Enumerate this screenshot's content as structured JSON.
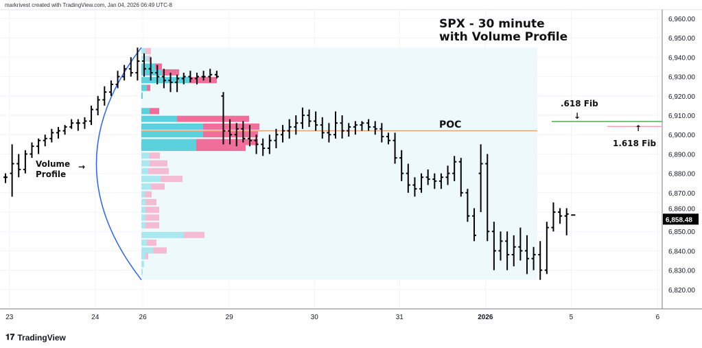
{
  "credit": "markrivest created with TradingView.com, Jan 04, 2026 06:49 UTC-8",
  "brand": "TradingView",
  "chart_data": {
    "type": "ohlc-bar",
    "title": "SPX - 30 minute",
    "subtitle": "with Volume Profile",
    "symbol": "SPX",
    "interval": "30 minute",
    "ylim": [
      6815,
      6965
    ],
    "yticks": [
      6820,
      6830,
      6840,
      6850,
      6860,
      6870,
      6880,
      6890,
      6900,
      6910,
      6920,
      6930,
      6940,
      6950,
      6960
    ],
    "ytick_labels": [
      "6,820.00",
      "6,830.00",
      "6,840.00",
      "6,850.00",
      "6,860.00",
      "6,870.00",
      "6,880.00",
      "6,890.00",
      "6,900.00",
      "6,910.00",
      "6,920.00",
      "6,930.00",
      "6,940.00",
      "6,950.00",
      "6,960.00"
    ],
    "last_price": 6858.48,
    "last_price_label": "6,858.48",
    "xticks": [
      {
        "bar": 0.6,
        "label": "23"
      },
      {
        "bar": 13.6,
        "label": "24"
      },
      {
        "bar": 20.8,
        "label": "26"
      },
      {
        "bar": 33.9,
        "label": "29"
      },
      {
        "bar": 46.8,
        "label": "30"
      },
      {
        "bar": 59.7,
        "label": "31"
      },
      {
        "bar": 72.7,
        "label": "2026"
      },
      {
        "bar": 85.7,
        "label": "5"
      },
      {
        "bar": 98.8,
        "label": "6"
      }
    ],
    "bars": [
      [
        6878,
        6880,
        6875,
        6878
      ],
      [
        6880,
        6895,
        6868,
        6885
      ],
      [
        6885,
        6890,
        6878,
        6882
      ],
      [
        6882,
        6892,
        6880,
        6890
      ],
      [
        6890,
        6896,
        6888,
        6894
      ],
      [
        6894,
        6898,
        6890,
        6897
      ],
      [
        6897,
        6900,
        6894,
        6898
      ],
      [
        6898,
        6903,
        6896,
        6901
      ],
      [
        6901,
        6904,
        6898,
        6902
      ],
      [
        6902,
        6905,
        6900,
        6904
      ],
      [
        6904,
        6908,
        6903,
        6906
      ],
      [
        6906,
        6908,
        6902,
        6906
      ],
      [
        6906,
        6909,
        6903,
        6907
      ],
      [
        6907,
        6915,
        6905,
        6913
      ],
      [
        6913,
        6920,
        6910,
        6918
      ],
      [
        6918,
        6925,
        6915,
        6922
      ],
      [
        6922,
        6928,
        6920,
        6926
      ],
      [
        6926,
        6933,
        6924,
        6930
      ],
      [
        6930,
        6936,
        6928,
        6934
      ],
      [
        6934,
        6940,
        6930,
        6932
      ],
      [
        6932,
        6945,
        6928,
        6938
      ],
      [
        6938,
        6942,
        6930,
        6934
      ],
      [
        6934,
        6940,
        6928,
        6932
      ],
      [
        6932,
        6936,
        6926,
        6930
      ],
      [
        6930,
        6934,
        6924,
        6928
      ],
      [
        6928,
        6932,
        6922,
        6927
      ],
      [
        6927,
        6931,
        6922,
        6929
      ],
      [
        6929,
        6932,
        6926,
        6930
      ],
      [
        6930,
        6933,
        6927,
        6929
      ],
      [
        6929,
        6932,
        6926,
        6930
      ],
      [
        6930,
        6933,
        6928,
        6930
      ],
      [
        6930,
        6934,
        6927,
        6931
      ],
      [
        6931,
        6933,
        6929,
        6930
      ],
      [
        6920,
        6922,
        6895,
        6902
      ],
      [
        6902,
        6908,
        6895,
        6900
      ],
      [
        6900,
        6906,
        6894,
        6903
      ],
      [
        6903,
        6907,
        6896,
        6898
      ],
      [
        6898,
        6905,
        6894,
        6897
      ],
      [
        6897,
        6900,
        6890,
        6895
      ],
      [
        6895,
        6898,
        6889,
        6893
      ],
      [
        6893,
        6900,
        6890,
        6897
      ],
      [
        6897,
        6903,
        6893,
        6900
      ],
      [
        6900,
        6905,
        6896,
        6902
      ],
      [
        6902,
        6908,
        6898,
        6904
      ],
      [
        6904,
        6910,
        6900,
        6906
      ],
      [
        6906,
        6914,
        6903,
        6910
      ],
      [
        6910,
        6913,
        6904,
        6907
      ],
      [
        6907,
        6912,
        6902,
        6905
      ],
      [
        6905,
        6909,
        6898,
        6901
      ],
      [
        6901,
        6906,
        6896,
        6900
      ],
      [
        6900,
        6912,
        6898,
        6906
      ],
      [
        6906,
        6910,
        6898,
        6902
      ],
      [
        6902,
        6906,
        6899,
        6904
      ],
      [
        6904,
        6907,
        6900,
        6905
      ],
      [
        6905,
        6907,
        6902,
        6906
      ],
      [
        6906,
        6908,
        6902,
        6904
      ],
      [
        6904,
        6907,
        6900,
        6903
      ],
      [
        6903,
        6906,
        6896,
        6899
      ],
      [
        6899,
        6901,
        6895,
        6897
      ],
      [
        6897,
        6901,
        6885,
        6888
      ],
      [
        6888,
        6892,
        6876,
        6880
      ],
      [
        6880,
        6885,
        6870,
        6874
      ],
      [
        6874,
        6878,
        6868,
        6872
      ],
      [
        6872,
        6880,
        6870,
        6878
      ],
      [
        6878,
        6882,
        6874,
        6877
      ],
      [
        6877,
        6880,
        6872,
        6876
      ],
      [
        6876,
        6880,
        6872,
        6878
      ],
      [
        6878,
        6884,
        6874,
        6880
      ],
      [
        6880,
        6889,
        6876,
        6886
      ],
      [
        6886,
        6888,
        6868,
        6870
      ],
      [
        6870,
        6872,
        6855,
        6858
      ],
      [
        6858,
        6862,
        6845,
        6848
      ],
      [
        6880,
        6895,
        6860,
        6885
      ],
      [
        6885,
        6890,
        6845,
        6850
      ],
      [
        6850,
        6855,
        6830,
        6840
      ],
      [
        6840,
        6850,
        6835,
        6845
      ],
      [
        6845,
        6850,
        6830,
        6838
      ],
      [
        6838,
        6848,
        6832,
        6842
      ],
      [
        6842,
        6852,
        6835,
        6840
      ],
      [
        6840,
        6848,
        6828,
        6836
      ],
      [
        6836,
        6842,
        6830,
        6838
      ],
      [
        6838,
        6845,
        6825,
        6830
      ],
      [
        6830,
        6855,
        6828,
        6852
      ],
      [
        6852,
        6865,
        6850,
        6860
      ],
      [
        6860,
        6862,
        6854,
        6858
      ],
      [
        6858,
        6862,
        6848,
        6859
      ],
      [
        6858.48,
        6858.48,
        6858.48,
        6858.48
      ]
    ],
    "volume_profile": {
      "poc": 6902,
      "poc_label": "POC",
      "range": [
        6825,
        6945
      ],
      "value_area": [
        6890,
        6935
      ],
      "rows": [
        [
          6943,
          6,
          8
        ],
        [
          6939,
          10,
          4
        ],
        [
          6935,
          20,
          10
        ],
        [
          6932,
          30,
          25
        ],
        [
          6928,
          70,
          40
        ],
        [
          6924,
          8,
          5
        ],
        [
          6920,
          2,
          0
        ],
        [
          6912,
          12,
          14
        ],
        [
          6908,
          52,
          105
        ],
        [
          6904,
          90,
          82
        ],
        [
          6900,
          90,
          80
        ],
        [
          6896,
          80,
          90
        ],
        [
          6893,
          80,
          72
        ],
        [
          6889,
          12,
          15
        ],
        [
          6885,
          12,
          26
        ],
        [
          6881,
          10,
          30
        ],
        [
          6877,
          28,
          32
        ],
        [
          6873,
          14,
          20
        ],
        [
          6869,
          5,
          10
        ],
        [
          6865,
          6,
          16
        ],
        [
          6861,
          6,
          20
        ],
        [
          6857,
          6,
          20
        ],
        [
          6853,
          6,
          20
        ],
        [
          6848,
          62,
          30
        ],
        [
          6844,
          8,
          14
        ],
        [
          6840,
          17,
          20
        ],
        [
          6837,
          6,
          4
        ],
        [
          6833,
          4,
          0
        ],
        [
          6829,
          2,
          0
        ]
      ]
    },
    "annotations": {
      "volume_profile_label": "Volume\nProfile",
      "fib_618": {
        "label": ".618 Fib",
        "price": 6906.8
      },
      "fib_1618": {
        "label": "1.618 Fib",
        "price": 6905.3
      }
    },
    "colors": {
      "up": "#5ad1dc",
      "down": "#ef6f9a",
      "poc": "#f0a070",
      "fib618": "#4caf50",
      "fib1618": "#f5a3b8",
      "curve": "#2962ff"
    }
  }
}
